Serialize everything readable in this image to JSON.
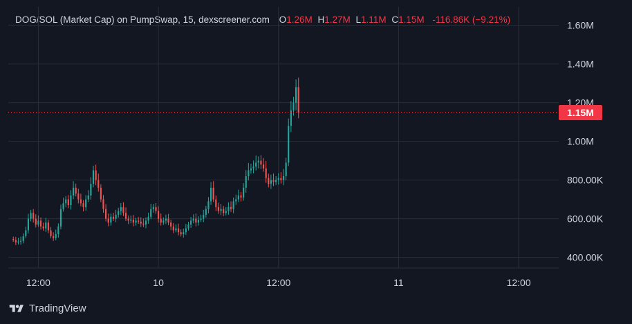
{
  "legend": {
    "symbol": "DOG/SOL (Market Cap) on PumpSwap, 15, dexscreener.com",
    "open_key": "O",
    "open": "1.26M",
    "high_key": "H",
    "high": "1.27M",
    "low_key": "L",
    "low": "1.11M",
    "close_key": "C",
    "close": "1.15M",
    "change": "-116.86K (−9.21%)"
  },
  "current_price_label": "1.15M",
  "footer": {
    "brand": "TradingView"
  },
  "colors": {
    "up": "#26a69a",
    "down": "#ef5350",
    "background": "#131722",
    "grid": "#2a2e39",
    "price_line": "#f23645"
  },
  "chart_data": {
    "type": "candlestick",
    "title": "DOG/SOL (Market Cap) on PumpSwap, 15, dexscreener.com",
    "y_ticks": [
      {
        "value": 1600000,
        "label": "1.60M"
      },
      {
        "value": 1400000,
        "label": "1.40M"
      },
      {
        "value": 1200000,
        "label": "1.20M"
      },
      {
        "value": 1000000,
        "label": "1.00M"
      },
      {
        "value": 800000,
        "label": "800.00K"
      },
      {
        "value": 600000,
        "label": "600.00K"
      },
      {
        "value": 400000,
        "label": "400.00K"
      }
    ],
    "x_ticks": [
      {
        "index": 10,
        "label": "12:00"
      },
      {
        "index": 58,
        "label": "10"
      },
      {
        "index": 106,
        "label": "12:00"
      },
      {
        "index": 154,
        "label": "11"
      },
      {
        "index": 202,
        "label": "12:00"
      }
    ],
    "ylim": [
      345000,
      1695000
    ],
    "x_index_range": [
      -2,
      218
    ],
    "current_price": 1150000,
    "grid": true,
    "candles_close": [
      490000,
      478000,
      482000,
      485000,
      510000,
      540000,
      600000,
      630000,
      600000,
      570000,
      590000,
      560000,
      550000,
      580000,
      540000,
      510000,
      500000,
      520000,
      560000,
      650000,
      680000,
      700000,
      670000,
      720000,
      760000,
      730000,
      700000,
      680000,
      660000,
      700000,
      720000,
      780000,
      850000,
      800000,
      760000,
      700000,
      650000,
      600000,
      580000,
      610000,
      600000,
      620000,
      640000,
      660000,
      630000,
      600000,
      590000,
      595000,
      580000,
      590000,
      585000,
      575000,
      570000,
      590000,
      610000,
      650000,
      660000,
      640000,
      600000,
      580000,
      590000,
      600000,
      580000,
      560000,
      540000,
      550000,
      530000,
      520000,
      530000,
      550000,
      570000,
      590000,
      600000,
      580000,
      595000,
      600000,
      620000,
      650000,
      690000,
      760000,
      700000,
      660000,
      640000,
      650000,
      630000,
      640000,
      660000,
      650000,
      690000,
      700000,
      720000,
      710000,
      760000,
      820000,
      850000,
      860000,
      870000,
      890000,
      900000,
      880000,
      860000,
      810000,
      780000,
      800000,
      790000,
      800000,
      810000,
      800000,
      820000,
      890000,
      1080000,
      1160000,
      1200000,
      1280000,
      1150000
    ],
    "candles_open_first": 495000
  }
}
